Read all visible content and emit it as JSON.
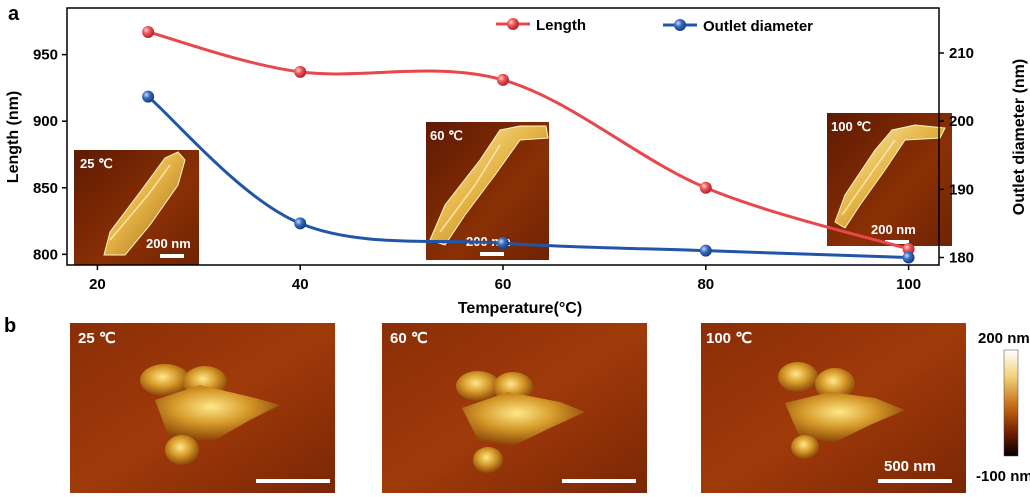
{
  "panels": {
    "a": "a",
    "b": "b"
  },
  "chart_data": {
    "type": "line",
    "x": [
      25,
      40,
      60,
      80,
      100
    ],
    "xlabel": "Temperature(°C)",
    "xlim": [
      17,
      103
    ],
    "xticks": [
      20,
      40,
      60,
      80,
      100
    ],
    "ylabel": "Length (nm)",
    "ylim": [
      792,
      985
    ],
    "yticks": [
      800,
      850,
      900,
      950
    ],
    "y2label": "Outlet diameter (nm)",
    "y2lim": [
      178.9,
      216.6
    ],
    "y2ticks": [
      180,
      190,
      200,
      210
    ],
    "series": [
      {
        "name": "Length",
        "axis": "left",
        "color": "#e8474b",
        "values": [
          967,
          937,
          931,
          850,
          804
        ]
      },
      {
        "name": "Outlet diameter",
        "axis": "right",
        "color": "#2155a8",
        "values": [
          203.6,
          185,
          182.1,
          181,
          180
        ]
      }
    ],
    "legend_position": "top-center",
    "insets": [
      {
        "label": "25 ℃",
        "scale": "200 nm"
      },
      {
        "label": "60 ℃",
        "scale": "200 nm"
      },
      {
        "label": "100 ℃",
        "scale": "200 nm"
      }
    ]
  },
  "afm_images": [
    {
      "label": "25 ℃"
    },
    {
      "label": "60 ℃"
    },
    {
      "label": "100 ℃",
      "scale": "500 nm"
    }
  ],
  "colorbar": {
    "max": "200 nm",
    "min": "-100 nm"
  }
}
